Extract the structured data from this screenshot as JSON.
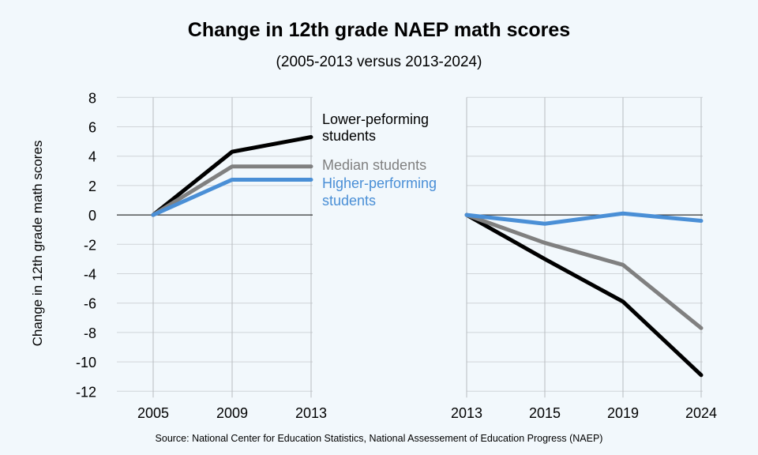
{
  "title": "Change in 12th grade NAEP math scores",
  "subtitle": "(2005-2013 versus 2013-2024)",
  "source": "Source: National Center for Education Statistics, National Assessement of Education Progress (NAEP)",
  "chart_data": [
    {
      "type": "line",
      "ylabel": "Change in 12th grade math scores",
      "ylim": [
        -12,
        8
      ],
      "yticks": [
        "8",
        "6",
        "4",
        "2",
        "0",
        "-2",
        "-4",
        "-6",
        "-8",
        "-10",
        "-12"
      ],
      "grid": true,
      "categories": [
        "2005",
        "2009",
        "2013"
      ],
      "series": [
        {
          "name": "Lower-peforming students",
          "color": "#000000",
          "values": [
            0,
            4.3,
            5.3
          ]
        },
        {
          "name": "Median students",
          "color": "#808080",
          "values": [
            0,
            3.3,
            3.3
          ]
        },
        {
          "name": "Higher-performing students",
          "color": "#4a8fd6",
          "values": [
            0,
            2.4,
            2.4
          ]
        }
      ],
      "legend": [
        "Lower-peforming",
        "students",
        "Median students",
        "Higher-performing",
        "students"
      ],
      "legend_placement": "right"
    },
    {
      "type": "line",
      "ylim": [
        -12,
        8
      ],
      "grid": true,
      "categories": [
        "2013",
        "2015",
        "2019",
        "2024"
      ],
      "series": [
        {
          "name": "Lower-peforming students",
          "color": "#000000",
          "values": [
            0,
            -3.0,
            -5.9,
            -10.9
          ]
        },
        {
          "name": "Median students",
          "color": "#808080",
          "values": [
            0,
            -1.9,
            -3.4,
            -7.7
          ]
        },
        {
          "name": "Higher-performing students",
          "color": "#4a8fd6",
          "values": [
            0,
            -0.6,
            0.1,
            -0.4
          ]
        }
      ]
    }
  ]
}
